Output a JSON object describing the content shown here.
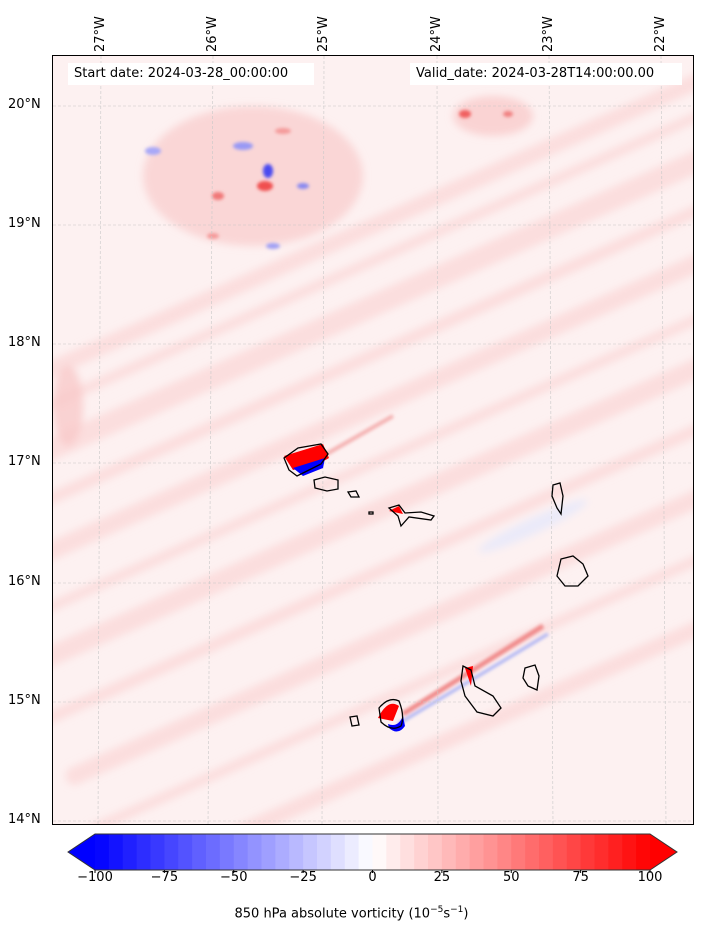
{
  "map": {
    "start_label": "Start date: 2024-03-28_00:00:00",
    "valid_label": "Valid_date: 2024-03-28T14:00:00.00",
    "lon_labels": [
      "27°W",
      "26°W",
      "25°W",
      "24°W",
      "23°W",
      "22°W"
    ],
    "lat_labels": [
      "20°N",
      "19°N",
      "18°N",
      "17°N",
      "16°N",
      "15°N",
      "14°N"
    ]
  },
  "colorbar": {
    "min": -100,
    "max": 100,
    "step": 5,
    "extend": "both",
    "colormap": "bwr",
    "colors": {
      "low": "#0000ff",
      "mid": "#ffffff",
      "high": "#ff0000"
    },
    "tick_labels": [
      "−100",
      "−75",
      "−50",
      "−25",
      "0",
      "25",
      "50",
      "75",
      "100"
    ],
    "label_main": "850 hPa absolute vorticity (10",
    "label_exp1": "−5",
    "label_mid": "s",
    "label_exp2": "−1",
    "label_end": ")"
  }
}
